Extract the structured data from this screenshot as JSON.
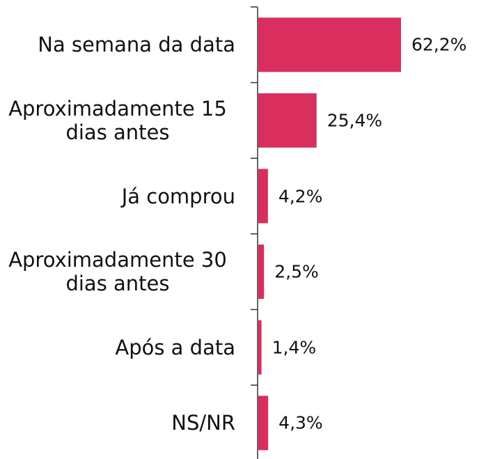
{
  "chart_data": {
    "type": "bar",
    "orientation": "horizontal",
    "categories": [
      "Na semana da data",
      "Aproximadamente 15 dias antes",
      "Já comprou",
      "Aproximadamente 30 dias antes",
      "Após a data",
      "NS/NR"
    ],
    "values": [
      62.2,
      25.4,
      4.2,
      2.5,
      1.4,
      4.3
    ],
    "value_labels": [
      "62,2%",
      "25,4%",
      "4,2%",
      "2,5%",
      "1,4%",
      "4,3%"
    ],
    "color": "#d92e5e"
  }
}
